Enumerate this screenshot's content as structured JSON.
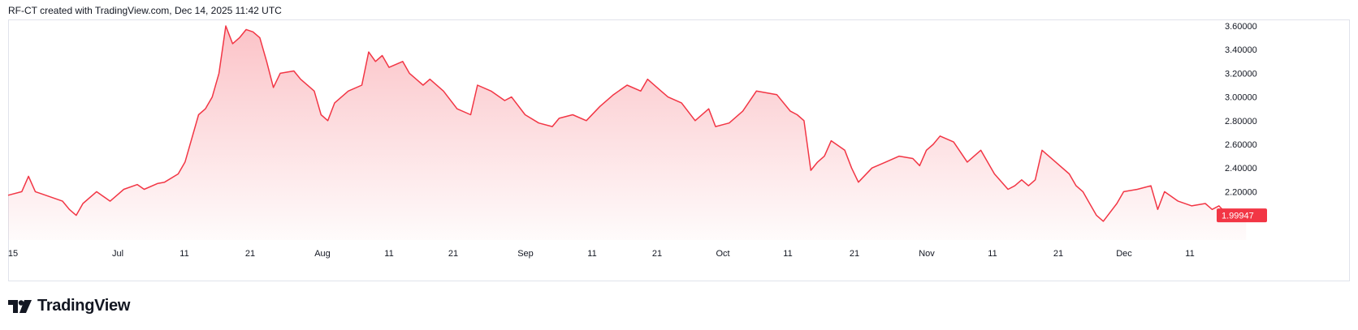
{
  "header": {
    "caption": "RF-CT created with TradingView.com, Dec 14, 2025 11:42 UTC"
  },
  "footer": {
    "logo_text": "TradingView"
  },
  "colors": {
    "line": "#f23645",
    "fill_top": "#f23645",
    "price_badge_bg": "#f23645",
    "price_badge_text": "#ffffff",
    "grid": "#e0e3eb"
  },
  "chart_data": {
    "type": "area",
    "title": "",
    "x_tick_labels": [
      "15",
      "Jul",
      "11",
      "21",
      "Aug",
      "11",
      "21",
      "Sep",
      "11",
      "21",
      "Oct",
      "11",
      "21",
      "Nov",
      "11",
      "21",
      "Dec",
      "11"
    ],
    "y_tick_labels": [
      "3.60000",
      "3.40000",
      "3.20000",
      "3.00000",
      "2.80000",
      "2.60000",
      "2.40000",
      "2.20000"
    ],
    "ylim": [
      1.95,
      3.62
    ],
    "last_price_label": "1.99947",
    "last_value": 1.99947,
    "x_start": "2025-06-15",
    "series": [
      {
        "x": [
          "2025-06-15",
          "2025-06-17",
          "2025-06-18",
          "2025-06-19",
          "2025-06-20",
          "2025-06-23",
          "2025-06-24",
          "2025-06-25",
          "2025-06-26",
          "2025-06-28",
          "2025-06-30",
          "2025-07-01",
          "2025-07-02",
          "2025-07-04",
          "2025-07-05",
          "2025-07-07",
          "2025-07-08",
          "2025-07-10",
          "2025-07-11",
          "2025-07-13",
          "2025-07-14",
          "2025-07-15",
          "2025-07-16",
          "2025-07-17",
          "2025-07-18",
          "2025-07-19",
          "2025-07-20",
          "2025-07-21",
          "2025-07-22",
          "2025-07-23",
          "2025-07-24",
          "2025-07-25",
          "2025-07-27",
          "2025-07-28",
          "2025-07-30",
          "2025-07-31",
          "2025-08-01",
          "2025-08-02",
          "2025-08-04",
          "2025-08-06",
          "2025-08-07",
          "2025-08-08",
          "2025-08-09",
          "2025-08-10",
          "2025-08-12",
          "2025-08-13",
          "2025-08-14",
          "2025-08-15",
          "2025-08-16",
          "2025-08-18",
          "2025-08-20",
          "2025-08-22",
          "2025-08-23",
          "2025-08-25",
          "2025-08-27",
          "2025-08-28",
          "2025-08-30",
          "2025-09-01",
          "2025-09-03",
          "2025-09-04",
          "2025-09-06",
          "2025-09-08",
          "2025-09-10",
          "2025-09-12",
          "2025-09-14",
          "2025-09-16",
          "2025-09-17",
          "2025-09-19",
          "2025-09-20",
          "2025-09-22",
          "2025-09-24",
          "2025-09-26",
          "2025-09-27",
          "2025-09-29",
          "2025-10-01",
          "2025-10-03",
          "2025-10-06",
          "2025-10-08",
          "2025-10-09",
          "2025-10-10",
          "2025-10-11",
          "2025-10-12",
          "2025-10-13",
          "2025-10-14",
          "2025-10-16",
          "2025-10-17",
          "2025-10-18",
          "2025-10-20",
          "2025-10-22",
          "2025-10-24",
          "2025-10-26",
          "2025-10-27",
          "2025-10-28",
          "2025-10-29",
          "2025-10-30",
          "2025-11-01",
          "2025-11-03",
          "2025-11-04",
          "2025-11-05",
          "2025-11-07",
          "2025-11-09",
          "2025-11-10",
          "2025-11-11",
          "2025-11-12",
          "2025-11-13",
          "2025-11-14",
          "2025-11-16",
          "2025-11-18",
          "2025-11-19",
          "2025-11-20",
          "2025-11-21",
          "2025-11-22",
          "2025-11-23",
          "2025-11-25",
          "2025-11-26",
          "2025-11-28",
          "2025-11-30",
          "2025-12-01",
          "2025-12-02",
          "2025-12-04",
          "2025-12-06",
          "2025-12-08",
          "2025-12-09",
          "2025-12-10",
          "2025-12-11",
          "2025-12-12",
          "2025-12-14"
        ],
        "y": [
          2.17,
          2.2,
          2.33,
          2.2,
          2.18,
          2.12,
          2.05,
          2.0,
          2.1,
          2.2,
          2.12,
          2.17,
          2.22,
          2.26,
          2.22,
          2.27,
          2.28,
          2.35,
          2.45,
          2.85,
          2.9,
          3.0,
          3.2,
          3.6,
          3.45,
          3.5,
          3.57,
          3.55,
          3.5,
          3.3,
          3.08,
          3.2,
          3.22,
          3.15,
          3.05,
          2.85,
          2.8,
          2.95,
          3.05,
          3.1,
          3.38,
          3.3,
          3.35,
          3.25,
          3.3,
          3.2,
          3.15,
          3.1,
          3.15,
          3.05,
          2.9,
          2.85,
          3.1,
          3.05,
          2.97,
          3.0,
          2.85,
          2.78,
          2.75,
          2.82,
          2.85,
          2.8,
          2.92,
          3.02,
          3.1,
          3.05,
          3.15,
          3.05,
          3.0,
          2.95,
          2.8,
          2.9,
          2.75,
          2.78,
          2.88,
          3.05,
          3.02,
          2.88,
          2.85,
          2.8,
          2.38,
          2.45,
          2.5,
          2.63,
          2.55,
          2.4,
          2.28,
          2.4,
          2.45,
          2.5,
          2.48,
          2.42,
          2.55,
          2.6,
          2.67,
          2.62,
          2.45,
          2.5,
          2.55,
          2.35,
          2.22,
          2.25,
          2.3,
          2.25,
          2.3,
          2.55,
          2.45,
          2.35,
          2.25,
          2.2,
          2.1,
          2.0,
          1.95,
          2.1,
          2.2,
          2.22,
          2.25,
          2.05,
          2.2,
          2.12,
          2.08,
          2.1,
          2.05,
          2.08,
          2.02,
          2.04,
          1.99947
        ]
      }
    ]
  }
}
